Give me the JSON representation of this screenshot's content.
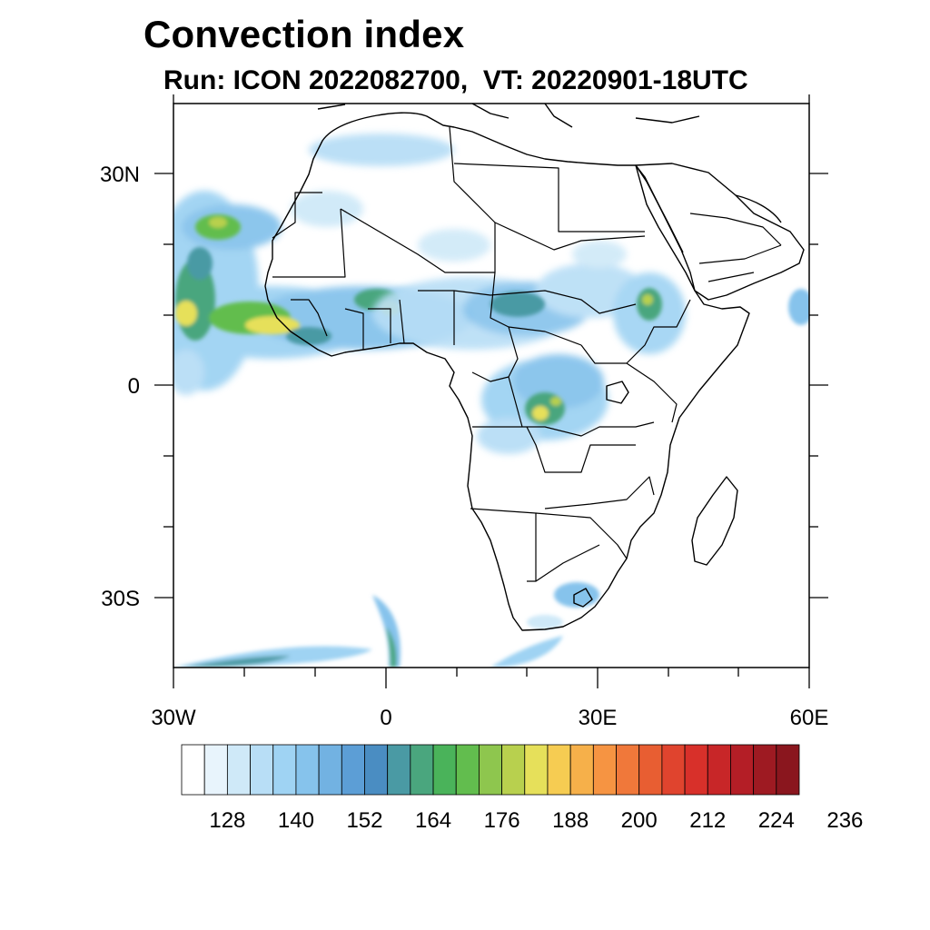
{
  "title": "Convection index",
  "subtitle": "Run: ICON 2022082700,  VT: 20220901-18UTC",
  "colors": {
    "frame": "#000000",
    "land": "#ffffff",
    "borders": "#000000"
  },
  "axes": {
    "x_ticks": [
      "30W",
      "0",
      "30E",
      "60E"
    ],
    "y_ticks": [
      "30N",
      "0",
      "30S"
    ]
  },
  "colorbar": {
    "colors": [
      "#ffffff",
      "#e8f4fc",
      "#cfe9f8",
      "#b8def6",
      "#9fd3f3",
      "#86c3ec",
      "#72b2e2",
      "#5c9ed6",
      "#4a8dc2",
      "#4a9aa4",
      "#4aa67e",
      "#4ab35a",
      "#62bd4e",
      "#8ec64e",
      "#b8d04e",
      "#e6e05a",
      "#f6cc52",
      "#f6b04a",
      "#f69442",
      "#f0783a",
      "#e85e32",
      "#e0442e",
      "#d8302a",
      "#c82628",
      "#b41e26",
      "#9e1a22",
      "#8a161e"
    ],
    "labels": [
      "128",
      "140",
      "152",
      "164",
      "176",
      "188",
      "200",
      "212",
      "224",
      "236"
    ]
  },
  "chart_data": {
    "type": "heatmap",
    "title": "Convection index",
    "subtitle": "Run: ICON 2022082700,  VT: 20220901-18UTC",
    "x_range": [
      -30,
      60
    ],
    "y_range": [
      -40,
      40
    ],
    "x_ticks": [
      "30W",
      "0",
      "30E",
      "60E"
    ],
    "y_ticks": [
      "30N",
      "0",
      "30S"
    ],
    "colorbar_labels": [
      128,
      140,
      152,
      164,
      176,
      188,
      200,
      212,
      224,
      236
    ],
    "levels": 27
  }
}
